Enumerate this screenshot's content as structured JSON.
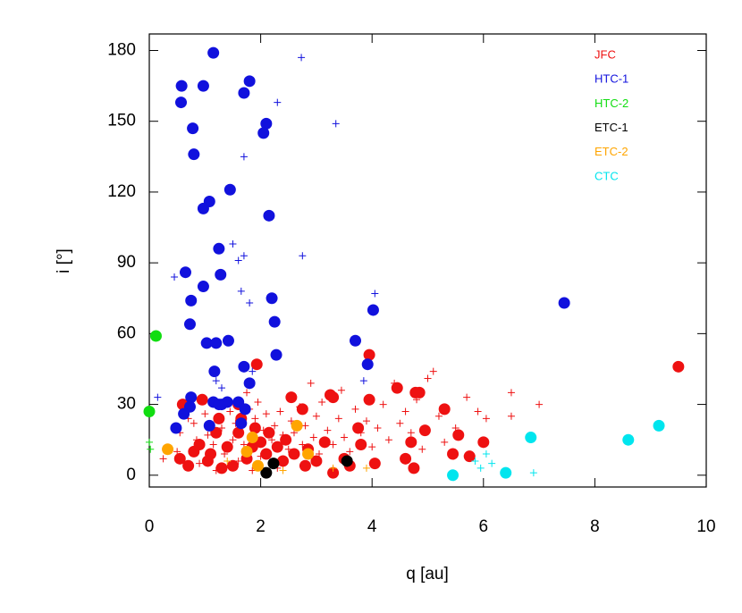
{
  "chart_data": {
    "type": "scatter",
    "x_label": "q [au]",
    "y_label": "i [°]",
    "xlim": [
      0,
      10
    ],
    "xticks": [
      0,
      2,
      4,
      6,
      8,
      10
    ],
    "ylim": [
      -5,
      187
    ],
    "yticks": [
      0,
      30,
      60,
      90,
      120,
      150,
      180
    ],
    "series": [
      {
        "name": "JFC",
        "color": "#ee1111",
        "x": [
          9.5,
          1.93,
          3.95,
          3.3,
          3.25,
          2.55,
          3.95,
          4.85,
          4.45,
          5.3,
          4.78,
          0.6,
          1.6,
          2.75,
          4.95,
          5.55,
          4.7,
          6.0,
          3.75,
          3.8,
          4.6,
          5.45,
          5.75,
          4.75,
          4.05,
          3.5,
          3.3,
          2.85,
          0.55,
          0.8,
          0.9,
          1.1,
          1.2,
          1.4,
          1.6,
          1.75,
          1.9,
          2.0,
          2.1,
          2.3,
          2.45,
          2.6,
          2.8,
          3.0,
          3.15,
          1.3,
          1.5,
          1.05,
          2.15,
          1.25,
          0.95,
          1.85,
          2.4,
          3.6,
          1.65,
          0.7
        ],
        "values": [
          46,
          47,
          51,
          33,
          34,
          33,
          32,
          35,
          37,
          28,
          35,
          30,
          30,
          28,
          19,
          17,
          14,
          14,
          20,
          13,
          7,
          9,
          8,
          3,
          5,
          7,
          1,
          11,
          7,
          10,
          13,
          9,
          18,
          12,
          18,
          7,
          20,
          14,
          9,
          12,
          15,
          9,
          4,
          6,
          14,
          3,
          4,
          6,
          18,
          24,
          32,
          12,
          6,
          4,
          24,
          4
        ],
        "plus_x": [
          0.25,
          0.5,
          0.55,
          0.7,
          0.8,
          0.85,
          0.9,
          1.0,
          1.05,
          1.15,
          1.2,
          1.3,
          1.35,
          1.45,
          1.5,
          1.55,
          1.6,
          1.7,
          1.75,
          1.8,
          1.85,
          1.9,
          1.95,
          2.0,
          2.05,
          2.1,
          2.2,
          2.25,
          2.3,
          2.35,
          2.4,
          2.5,
          2.55,
          2.6,
          2.7,
          2.75,
          2.8,
          2.9,
          2.95,
          3.0,
          3.05,
          3.1,
          3.2,
          3.3,
          3.4,
          3.45,
          3.5,
          3.6,
          3.7,
          3.8,
          3.9,
          4.0,
          4.1,
          4.2,
          4.3,
          4.4,
          4.5,
          4.6,
          4.7,
          4.8,
          4.9,
          5.0,
          5.1,
          5.2,
          5.3,
          5.5,
          5.7,
          5.9,
          6.05,
          6.5,
          6.5,
          7.0
        ],
        "plus_values": [
          7,
          10,
          18,
          24,
          22,
          15,
          5,
          26,
          17,
          13,
          2,
          20,
          9,
          27,
          15,
          22,
          6,
          13,
          35,
          28,
          2,
          24,
          31,
          8,
          19,
          26,
          15,
          21,
          3,
          27,
          17,
          11,
          23,
          18,
          29,
          13,
          21,
          39,
          16,
          25,
          9,
          31,
          19,
          13,
          24,
          36,
          16,
          10,
          28,
          18,
          23,
          12,
          20,
          30,
          15,
          39,
          22,
          27,
          18,
          32,
          11,
          41,
          44,
          25,
          14,
          20,
          33,
          27,
          24,
          35,
          25,
          30
        ]
      },
      {
        "name": "HTC-1",
        "color": "#1111dd",
        "x": [
          1.15,
          0.58,
          1.8,
          0.97,
          1.7,
          0.57,
          2.1,
          0.78,
          2.05,
          0.8,
          1.45,
          1.08,
          0.97,
          2.15,
          1.25,
          0.65,
          1.28,
          0.97,
          0.75,
          2.2,
          2.25,
          0.73,
          7.45,
          4.02,
          1.03,
          1.2,
          1.42,
          3.7,
          2.28,
          1.7,
          1.17,
          3.92,
          1.8,
          0.75,
          0.73,
          0.62,
          1.15,
          1.3,
          1.4,
          1.6,
          1.72,
          0.48,
          1.08,
          1.65,
          1.25
        ],
        "values": [
          179,
          165,
          167,
          165,
          162,
          158,
          149,
          147,
          145,
          136,
          121,
          116,
          113,
          110,
          96,
          86,
          85,
          80,
          74,
          75,
          65,
          64,
          73,
          70,
          56,
          56,
          57,
          57,
          51,
          46,
          44,
          47,
          39,
          33,
          29,
          26,
          31,
          30,
          31,
          31,
          28,
          20,
          21,
          22,
          30
        ],
        "plus_x": [
          2.73,
          3.35,
          2.3,
          1.7,
          1.5,
          1.6,
          1.7,
          2.75,
          0.45,
          1.65,
          1.8,
          4.05,
          0.15,
          1.2,
          1.3,
          1.85,
          3.85
        ],
        "plus_values": [
          177,
          149,
          158,
          135,
          98,
          91,
          93,
          93,
          84,
          78,
          73,
          77,
          33,
          40,
          37,
          44,
          40
        ]
      },
      {
        "name": "HTC-2",
        "color": "#11dd11",
        "x": [
          0.12,
          0.0
        ],
        "values": [
          59,
          27
        ],
        "plus_x": [
          0.0,
          0.02
        ],
        "plus_values": [
          14,
          11
        ]
      },
      {
        "name": "ETC-1",
        "color": "#000000",
        "x": [
          2.1,
          2.23,
          3.55
        ],
        "values": [
          1,
          5,
          6
        ],
        "plus_x": [],
        "plus_values": []
      },
      {
        "name": "ETC-2",
        "color": "#ffa500",
        "x": [
          0.33,
          1.85,
          2.65,
          2.85,
          1.75,
          1.95
        ],
        "values": [
          11,
          16,
          21,
          9,
          10,
          4
        ],
        "plus_x": [
          2.4,
          3.3,
          3.9,
          1.4
        ],
        "plus_values": [
          2,
          3,
          3,
          6
        ]
      },
      {
        "name": "CTC",
        "color": "#00e5ee",
        "x": [
          5.45,
          6.4,
          6.85,
          8.6,
          9.15
        ],
        "values": [
          0,
          1,
          16,
          15,
          21
        ],
        "plus_x": [
          5.85,
          6.05,
          6.15,
          6.9,
          5.95
        ],
        "plus_values": [
          6,
          9,
          5,
          1,
          3
        ]
      }
    ]
  }
}
